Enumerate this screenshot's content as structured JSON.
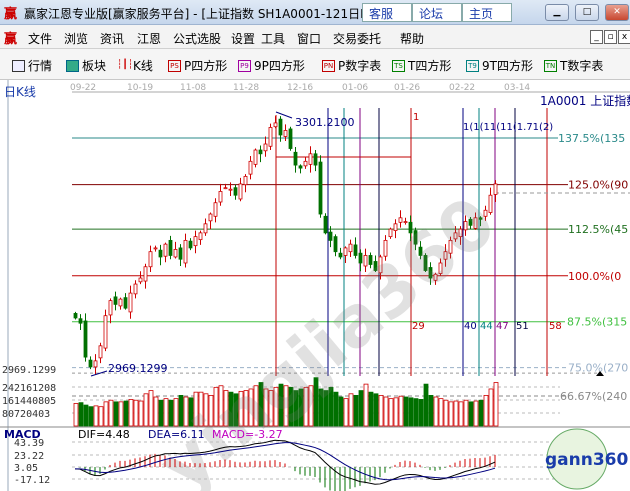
{
  "window": {
    "title": "赢家江恩专业版[赢家服务平台] - [上证指数  SH1A0001-121日K",
    "links": [
      "客服",
      "论坛",
      "主页"
    ],
    "logo": "赢"
  },
  "menu": [
    "文件",
    "浏览",
    "资讯",
    "江恩",
    "公式选股",
    "设置",
    "工具",
    "窗口",
    "交易委托",
    "帮助"
  ],
  "toolbar": [
    {
      "label": "行情",
      "icon": "table-icon"
    },
    {
      "label": "板块",
      "icon": "grid-icon"
    },
    {
      "label": "K线",
      "icon": "candles-icon",
      "tag": ""
    },
    {
      "label": "P四方形",
      "tag": "PS",
      "color": "#c00000"
    },
    {
      "label": "9P四方形",
      "tag": "P9",
      "color": "#a000a0"
    },
    {
      "label": "P数字表",
      "tag": "PN",
      "color": "#c00000"
    },
    {
      "label": "T四方形",
      "tag": "TS",
      "color": "#008000"
    },
    {
      "label": "9T四方形",
      "tag": "T9",
      "color": "#008080"
    },
    {
      "label": "T数字表",
      "tag": "TN",
      "color": "#008000"
    }
  ],
  "chart": {
    "period_label": "日K线",
    "symbol_label": "1A0001  上证指数",
    "dates": [
      "09-22",
      "10-19",
      "11-08",
      "11-28",
      "12-16",
      "01-06",
      "01-26",
      "02-22",
      "03-14"
    ],
    "high_label": "3301.2100",
    "low_label": "2969.1299",
    "low_axis": "2969.1299",
    "levels": [
      {
        "label": "137.5%(135",
        "price": 3276,
        "color": "#2a8a8a"
      },
      {
        "label": "125.0%(90",
        "price": 3214,
        "color": "#800000"
      },
      {
        "label": "112.5%(45",
        "price": 3155,
        "color": "#207020"
      },
      {
        "label": "100.0%(0",
        "price": 3093,
        "color": "#c00000"
      },
      {
        "label": "87.5%(315",
        "price": 3032,
        "color": "#40c040"
      },
      {
        "label": "75.0%(270",
        "price": 2971,
        "color": "#9ab0c8"
      },
      {
        "label": "66.67%(240",
        "price": 2929,
        "color": "#888888"
      }
    ],
    "cycle_top_label": "1(1(11(11(1.71(2)",
    "cycle_lines": [
      {
        "n": "1",
        "color": "#c00000"
      },
      {
        "n": "29",
        "color": "#c00000"
      },
      {
        "n": "40",
        "color": "#000080"
      },
      {
        "n": "44",
        "color": "#008080"
      },
      {
        "n": "47",
        "color": "#800080"
      },
      {
        "n": "51",
        "color": "#000040"
      },
      {
        "n": "58",
        "color": "#c00000"
      }
    ],
    "closes": [
      3037,
      3030,
      2985,
      2972,
      2980,
      3000,
      3040,
      3060,
      3055,
      3062,
      3050,
      3070,
      3082,
      3090,
      3105,
      3125,
      3130,
      3118,
      3135,
      3120,
      3128,
      3115,
      3140,
      3130,
      3145,
      3150,
      3162,
      3175,
      3190,
      3205,
      3210,
      3208,
      3200,
      3215,
      3225,
      3245,
      3260,
      3255,
      3268,
      3290,
      3296,
      3280,
      3286,
      3262,
      3240,
      3236,
      3245,
      3255,
      3240,
      3175,
      3150,
      3140,
      3125,
      3118,
      3130,
      3135,
      3120,
      3110,
      3120,
      3108,
      3100,
      3118,
      3140,
      3155,
      3162,
      3170,
      3165,
      3150,
      3135,
      3120,
      3100,
      3090,
      3095,
      3110,
      3125,
      3140,
      3150,
      3155,
      3165,
      3160,
      3170,
      3168,
      3180,
      3200,
      3215
    ],
    "volume_axis": [
      "242161208",
      "161440805",
      "80720403"
    ],
    "volumes": [
      140,
      145,
      130,
      120,
      125,
      120,
      150,
      160,
      150,
      150,
      155,
      165,
      160,
      155,
      200,
      220,
      180,
      160,
      170,
      160,
      170,
      190,
      180,
      175,
      210,
      210,
      200,
      190,
      240,
      250,
      220,
      210,
      200,
      215,
      220,
      230,
      250,
      270,
      230,
      220,
      240,
      260,
      250,
      240,
      220,
      230,
      240,
      250,
      300,
      230,
      220,
      240,
      210,
      180,
      170,
      200,
      190,
      220,
      260,
      210,
      200,
      190,
      180,
      170,
      175,
      185,
      180,
      175,
      170,
      165,
      260,
      190,
      180,
      170,
      160,
      150,
      155,
      150,
      160,
      150,
      155,
      160,
      190,
      230,
      270
    ],
    "macd": {
      "title": "MACD",
      "dif": "DIF=4.48",
      "dea": "DEA=6.11",
      "macd": "MACD=-3.27",
      "axis": [
        "43.39",
        "23.22",
        "3.05",
        "-17.12"
      ]
    },
    "watermark": "yingjia360"
  },
  "colors": {
    "up": "#d00000",
    "down": "#007000",
    "dif": "#000000",
    "dea": "#000080"
  }
}
